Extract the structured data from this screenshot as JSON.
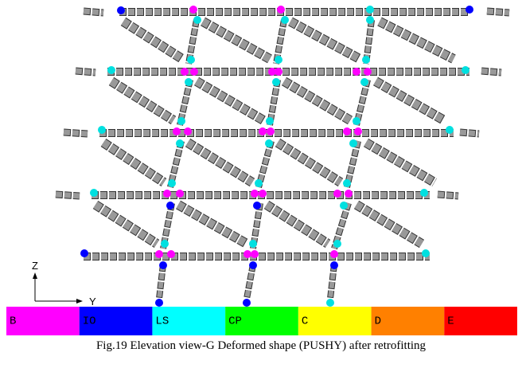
{
  "axes": {
    "vertical": "Z",
    "horizontal": "Y"
  },
  "legend": [
    {
      "label": "B",
      "color": "#ff00ff"
    },
    {
      "label": "IO",
      "color": "#0000ff"
    },
    {
      "label": "LS",
      "color": "#00ffff"
    },
    {
      "label": "CP",
      "color": "#00ff00"
    },
    {
      "label": "C",
      "color": "#ffff00"
    },
    {
      "label": "D",
      "color": "#ff8000"
    },
    {
      "label": "E",
      "color": "#ff0000"
    }
  ],
  "caption": "Fig.19 Elevation view-G Deformed shape (PUSHY) after retrofitting"
}
